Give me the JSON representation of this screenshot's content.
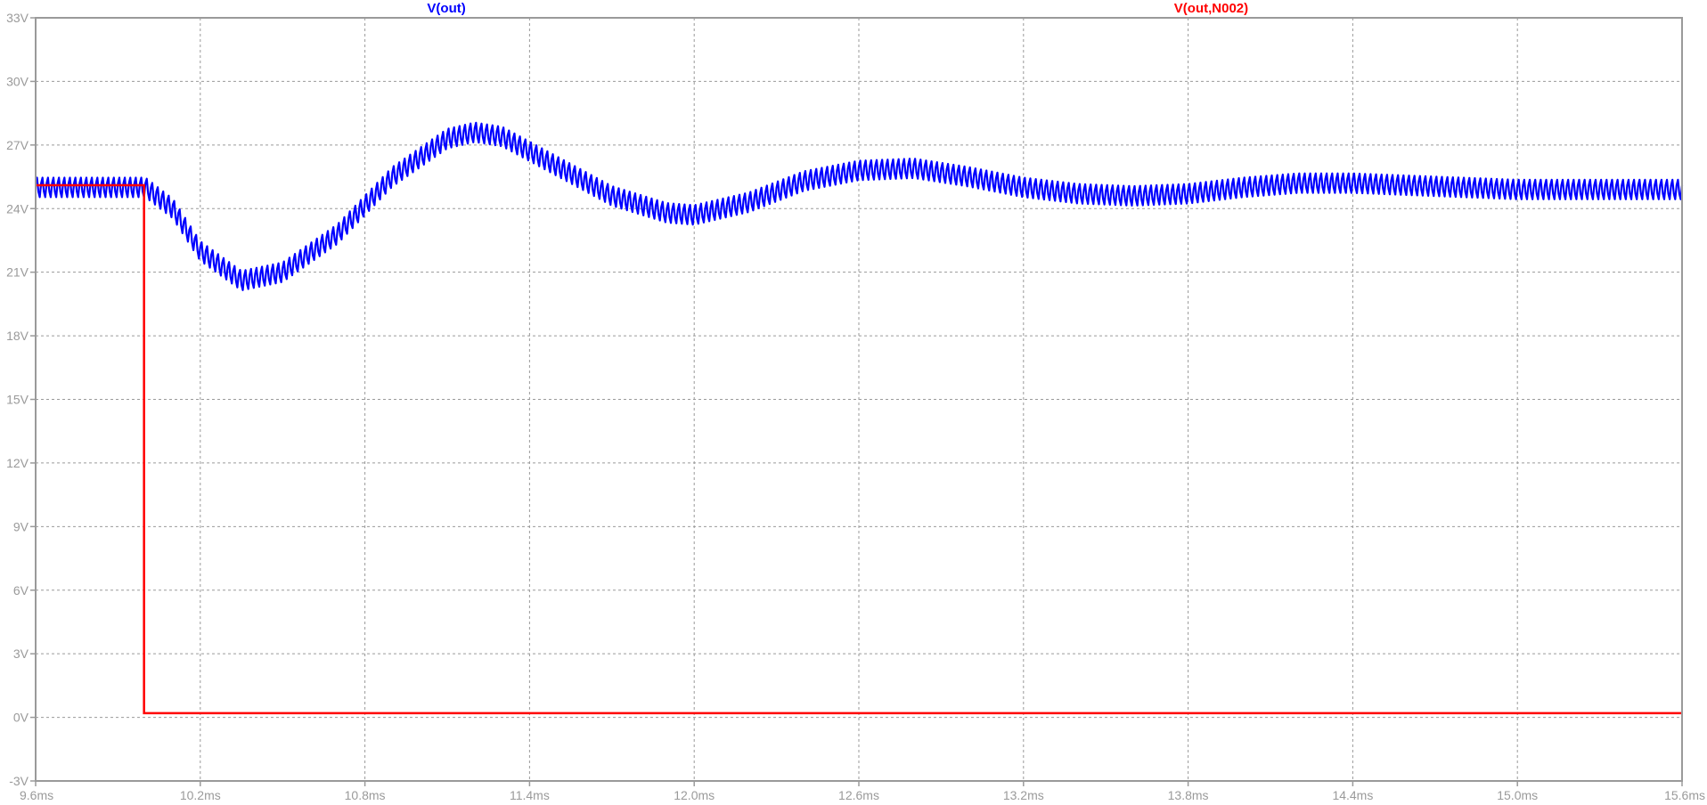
{
  "chart_data": {
    "type": "line",
    "legend": [
      {
        "name": "V(out)",
        "color": "#0000ff"
      },
      {
        "name": "V(out,N002)",
        "color": "#ff0000"
      }
    ],
    "x_ticks": [
      "9.6ms",
      "10.2ms",
      "10.8ms",
      "11.4ms",
      "12.0ms",
      "12.6ms",
      "13.2ms",
      "13.8ms",
      "14.4ms",
      "15.0ms",
      "15.6ms"
    ],
    "y_ticks": [
      "33V",
      "30V",
      "27V",
      "24V",
      "21V",
      "18V",
      "15V",
      "12V",
      "9V",
      "6V",
      "3V",
      "0V",
      "-3V"
    ],
    "xlim": [
      9.6,
      15.6
    ],
    "ylim": [
      -3,
      33
    ],
    "x_unit": "ms",
    "y_unit": "V",
    "grid": true,
    "series": [
      {
        "name": "V(out)",
        "color": "#0000ff",
        "ripple_peak_to_peak_V": 1.0,
        "envelope_x": [
          9.6,
          10.0,
          10.1,
          10.2,
          10.35,
          10.5,
          10.7,
          10.9,
          11.1,
          11.2,
          11.3,
          11.5,
          11.7,
          11.9,
          12.0,
          12.2,
          12.4,
          12.6,
          12.8,
          13.0,
          13.2,
          13.4,
          13.6,
          13.8,
          14.0,
          14.2,
          14.4,
          14.6,
          14.8,
          15.0,
          15.2,
          15.4,
          15.6
        ],
        "envelope_y": [
          25.0,
          25.0,
          24.0,
          22.0,
          20.6,
          21.0,
          22.8,
          25.5,
          27.3,
          27.6,
          27.4,
          26.0,
          24.6,
          23.8,
          23.7,
          24.3,
          25.3,
          25.8,
          25.9,
          25.5,
          25.0,
          24.7,
          24.6,
          24.7,
          25.0,
          25.2,
          25.2,
          25.1,
          25.0,
          24.9,
          24.9,
          24.9,
          24.9
        ]
      },
      {
        "name": "V(out,N002)",
        "color": "#ff0000",
        "x": [
          9.6,
          9.995,
          9.995,
          15.6
        ],
        "y": [
          25.1,
          25.1,
          0.2,
          0.2
        ]
      }
    ]
  }
}
